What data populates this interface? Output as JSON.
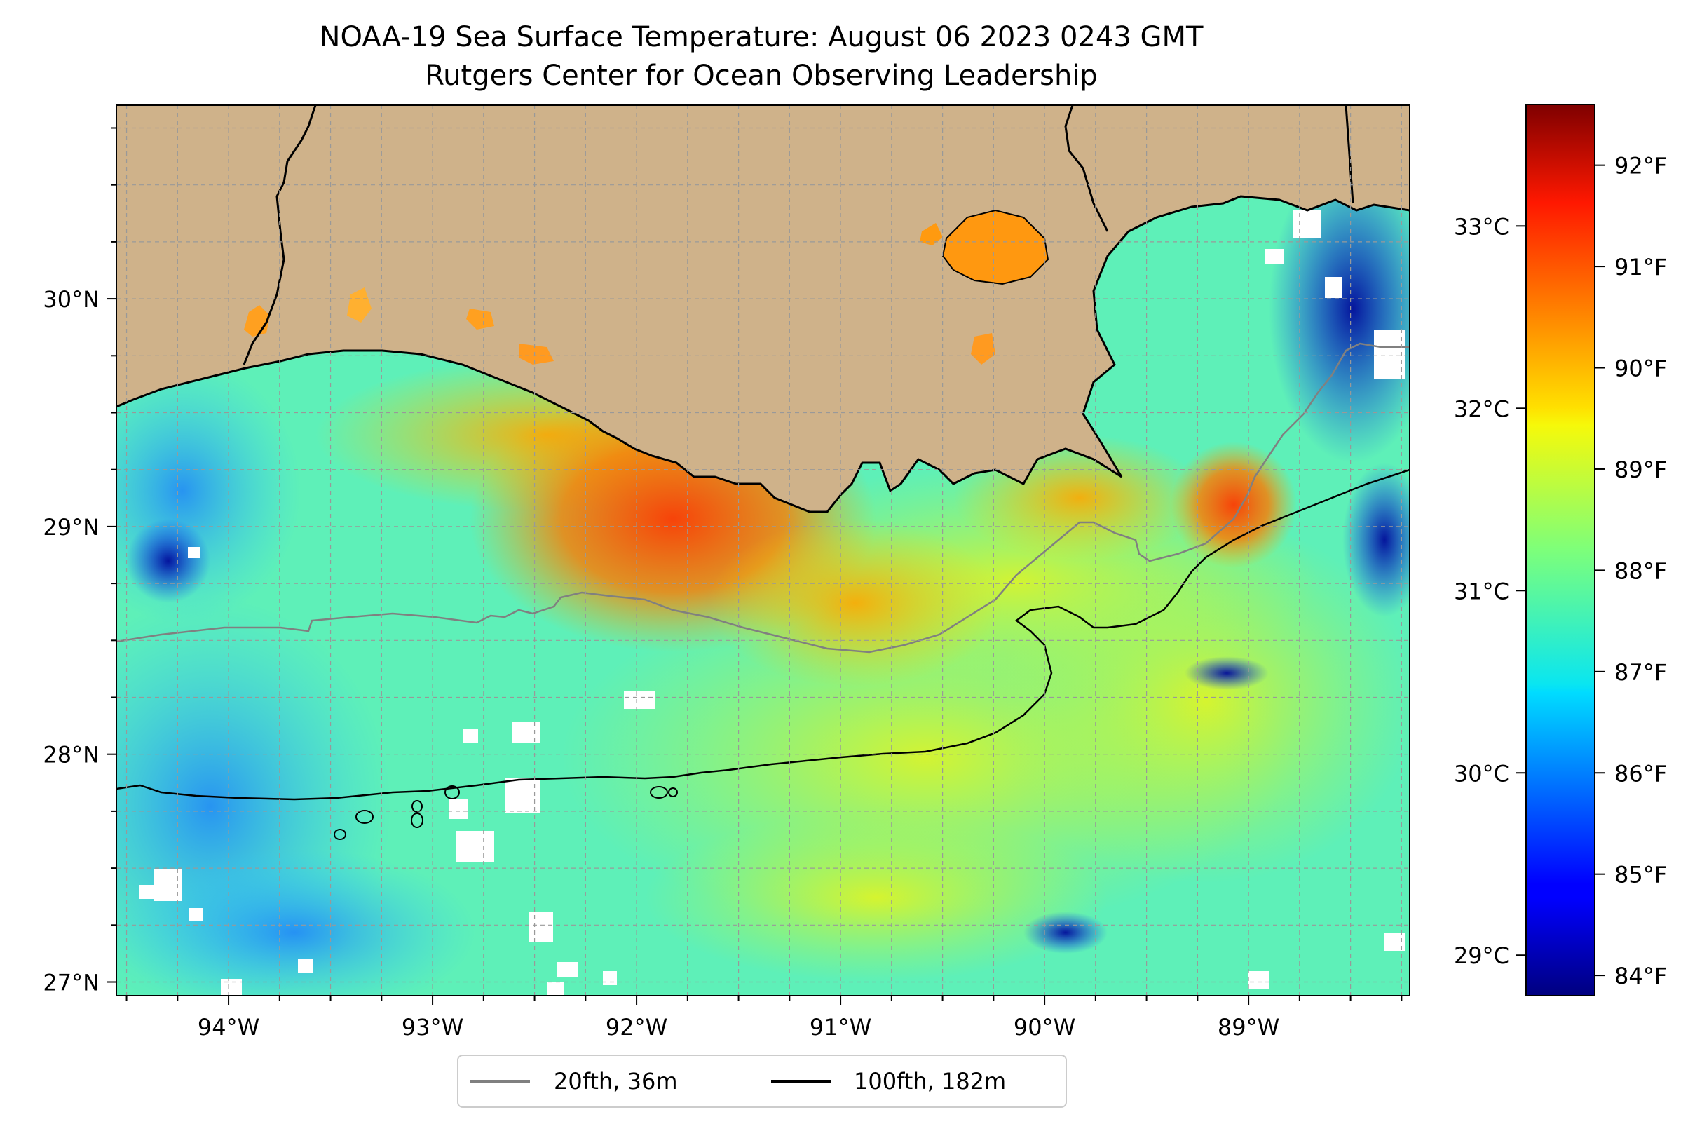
{
  "title": {
    "line1": "NOAA-19 Sea Surface Temperature: August 06 2023 0243 GMT",
    "line2": "Rutgers Center for Ocean Observing Leadership"
  },
  "map": {
    "lon_range": [
      -94.55,
      -88.21
    ],
    "lat_range": [
      26.94,
      30.85
    ],
    "lon_ticks": [
      -94,
      -93,
      -92,
      -91,
      -90,
      -89
    ],
    "lon_tick_labels": [
      "94°W",
      "93°W",
      "92°W",
      "91°W",
      "90°W",
      "89°W"
    ],
    "lat_ticks": [
      27,
      28,
      29,
      30
    ],
    "lat_tick_labels": [
      "27°N",
      "28°N",
      "29°N",
      "30°N"
    ],
    "grid": "dashed",
    "land_color": "#cfb28a"
  },
  "colorbar": {
    "colormap": "jet",
    "range_f": [
      83.8,
      92.6
    ],
    "f_ticks": [
      84,
      85,
      86,
      87,
      88,
      89,
      90,
      91,
      92
    ],
    "f_tick_labels": [
      "84°F",
      "85°F",
      "86°F",
      "87°F",
      "88°F",
      "89°F",
      "90°F",
      "91°F",
      "92°F"
    ],
    "c_ticks": [
      29,
      30,
      31,
      32,
      33
    ],
    "c_tick_labels": [
      "29°C",
      "30°C",
      "31°C",
      "32°C",
      "33°C"
    ]
  },
  "legend": {
    "placement": "bottom-center",
    "items": [
      {
        "label": "20fth, 36m",
        "color": "#808080"
      },
      {
        "label": "100fth, 182m",
        "color": "#000000"
      }
    ]
  }
}
